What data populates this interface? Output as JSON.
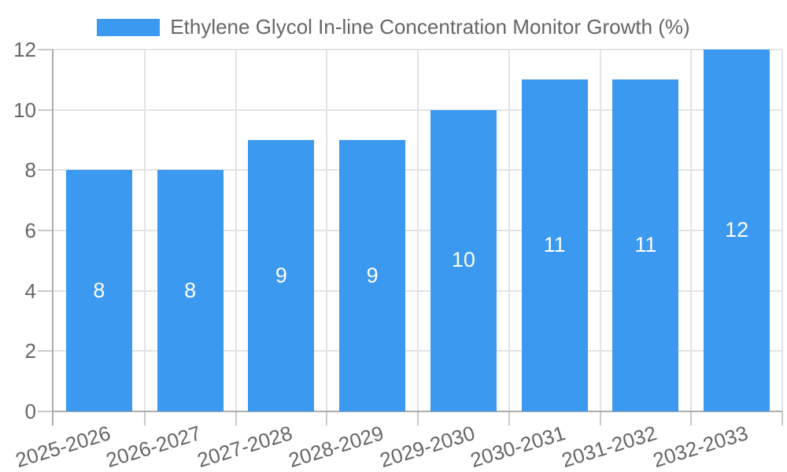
{
  "legend": {
    "label": "Ethylene Glycol In-line Concentration Monitor Growth (%)"
  },
  "chart_data": {
    "type": "bar",
    "title": "Ethylene Glycol In-line Concentration Monitor Growth (%)",
    "categories": [
      "2025-2026",
      "2026-2027",
      "2027-2028",
      "2028-2029",
      "2029-2030",
      "2030-2031",
      "2031-2032",
      "2032-2033"
    ],
    "series": [
      {
        "name": "Ethylene Glycol In-line Concentration Monitor Growth (%)",
        "values": [
          8,
          8,
          9,
          9,
          10,
          11,
          11,
          12
        ]
      }
    ],
    "bar_value_labels": [
      "8",
      "8",
      "9",
      "9",
      "10",
      "11",
      "11",
      "12"
    ],
    "xlabel": "",
    "ylabel": "",
    "ylim": [
      0,
      12
    ],
    "yticks": [
      0,
      2,
      4,
      6,
      8,
      10,
      12
    ],
    "grid": true,
    "legend_position": "top",
    "colors": {
      "bar": "#3b99f0",
      "bar_label": "#ffffff",
      "axis_text": "#666666",
      "grid": "#e3e3e3",
      "axis_line": "#adadad",
      "tick_stub": "#c9c9c9"
    }
  }
}
